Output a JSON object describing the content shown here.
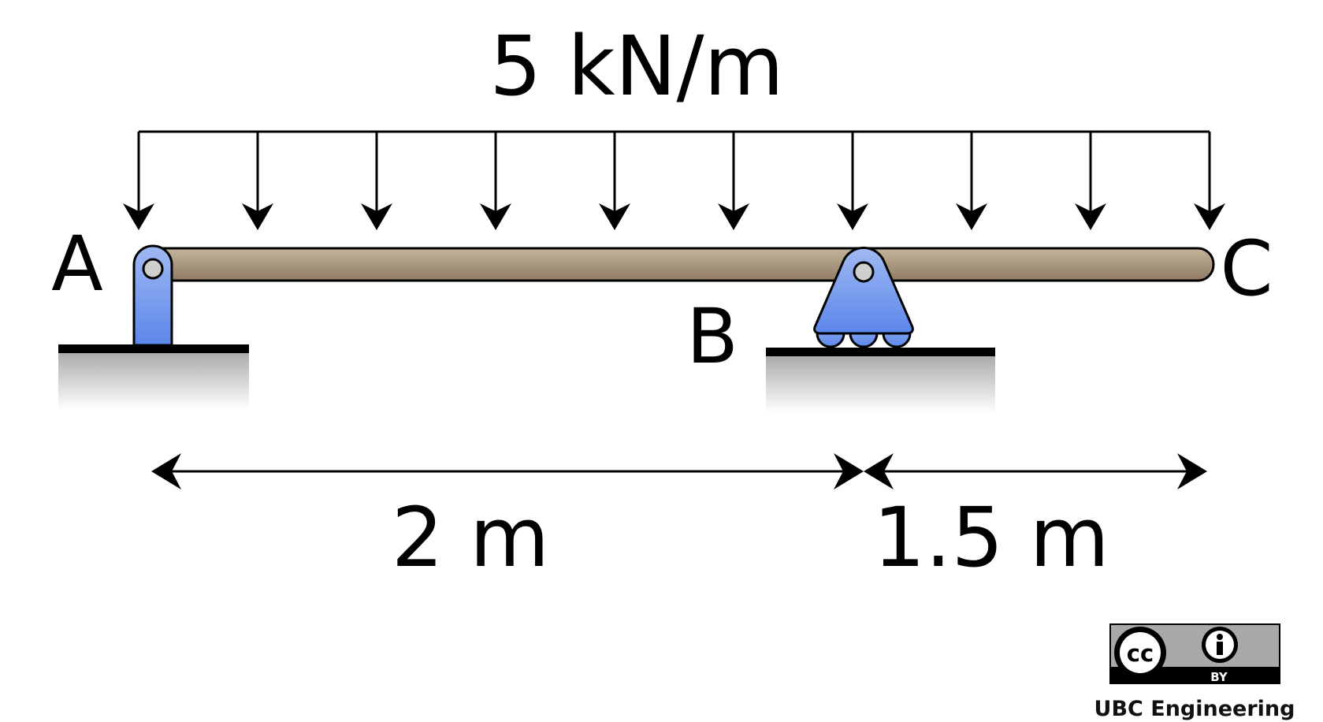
{
  "load": {
    "label": "5 kN/m",
    "arrow_count": 10
  },
  "points": {
    "a": "A",
    "b": "B",
    "c": "C"
  },
  "dimensions": {
    "ab": "2 m",
    "bc": "1.5 m"
  },
  "license": {
    "cc_text": "cc",
    "by_text": "BY",
    "credit": "UBC Engineering"
  },
  "colors": {
    "beam": "#a9957a",
    "support": "#6d94ec",
    "ground": "#bdbdbd",
    "line": "#000000"
  }
}
